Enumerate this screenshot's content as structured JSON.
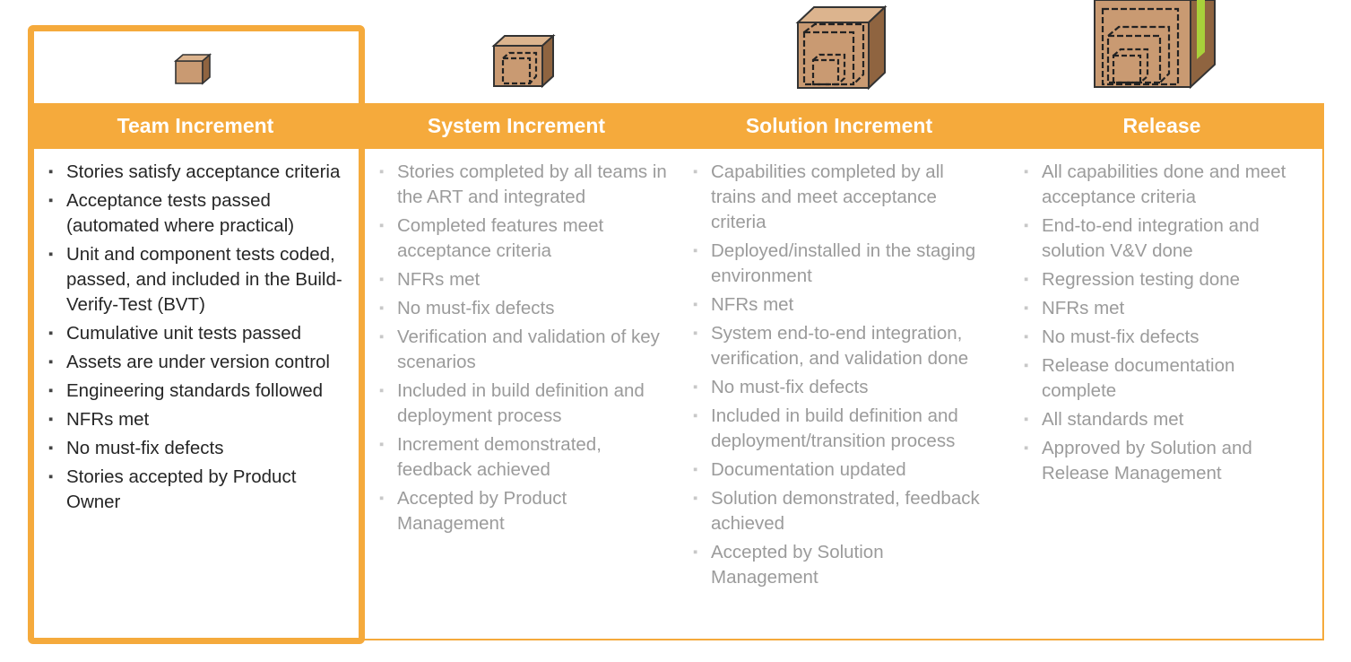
{
  "columns": [
    {
      "title": "Team Increment",
      "active": true,
      "items": [
        "Stories satisfy acceptance criteria",
        "Acceptance tests passed (automated where practical)",
        "Unit and component tests coded, passed, and included in the Build-Verify-Test (BVT)",
        "Cumulative unit tests passed",
        "Assets are under version control",
        "Engineering standards followed",
        "NFRs met",
        "No must-fix defects",
        "Stories accepted by Product Owner"
      ]
    },
    {
      "title": "System Increment",
      "active": false,
      "items": [
        "Stories completed by all teams in the ART and integrated",
        "Completed features meet acceptance criteria",
        "NFRs met",
        "No must-fix defects",
        "Verification and validation of key scenarios",
        "Included in build definition and deployment process",
        "Increment demonstrated, feedback achieved",
        "Accepted by Product Management"
      ]
    },
    {
      "title": "Solution Increment",
      "active": false,
      "items": [
        "Capabilities completed by all trains and meet acceptance criteria",
        "Deployed/installed in the staging environment",
        "NFRs met",
        "System end-to-end integration, verification, and validation done",
        "No must-fix defects",
        "Included in build definition and deployment/transition process",
        "Documentation updated",
        "Solution demonstrated, feedback achieved",
        "Accepted by Solution Management"
      ]
    },
    {
      "title": "Release",
      "active": false,
      "items": [
        "All capabilities done and meet acceptance criteria",
        "End-to-end integration and solution V&V done",
        "Regression testing done",
        "NFRs met",
        "No must-fix defects",
        "Release documentation complete",
        "All standards met",
        "Approved by Solution and Release Management"
      ]
    }
  ],
  "colors": {
    "accent": "#f5aa3c",
    "box_fill": "#c99a72",
    "active_text": "#262626",
    "dim_text": "#9b9b9b"
  }
}
